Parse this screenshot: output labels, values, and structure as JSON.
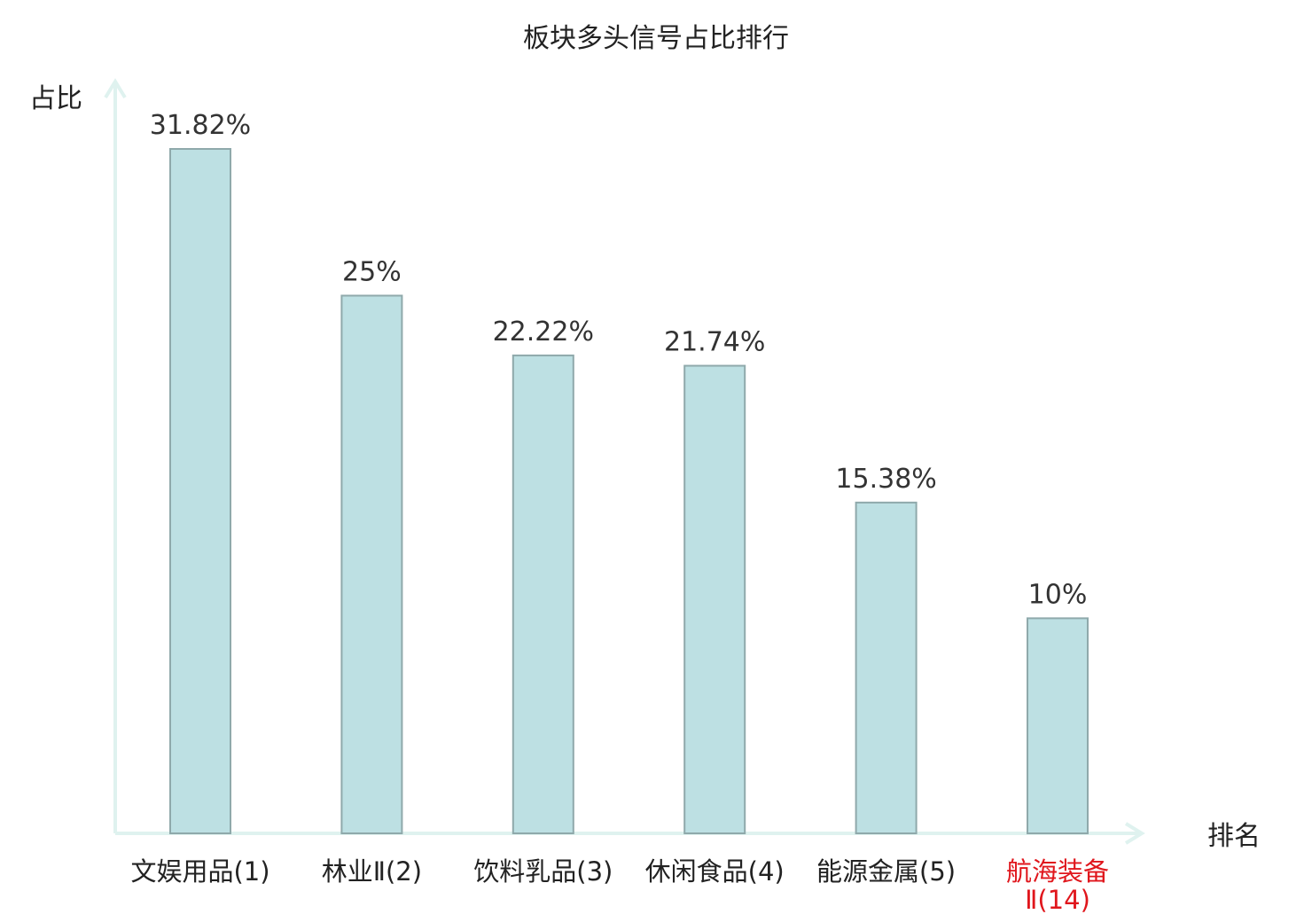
{
  "chart_data": {
    "type": "bar",
    "title": "板块多头信号占比排行",
    "ylabel": "占比",
    "xlabel": "排名",
    "ylim": [
      0,
      32
    ],
    "grid": false,
    "legend": "none",
    "categories": [
      {
        "lines": [
          "文娱用品(1)"
        ],
        "highlight": false
      },
      {
        "lines": [
          "林业Ⅱ(2)"
        ],
        "highlight": false
      },
      {
        "lines": [
          "饮料乳品(3)"
        ],
        "highlight": false
      },
      {
        "lines": [
          "休闲食品(4)"
        ],
        "highlight": false
      },
      {
        "lines": [
          "能源金属(5)"
        ],
        "highlight": false
      },
      {
        "lines": [
          "航海装备",
          "Ⅱ(14)"
        ],
        "highlight": true
      }
    ],
    "values": [
      31.82,
      25,
      22.22,
      21.74,
      15.38,
      10
    ],
    "value_labels": [
      "31.82%",
      "25%",
      "22.22%",
      "21.74%",
      "15.38%",
      "10%"
    ],
    "colors": {
      "bar_fill": "#bde0e3",
      "bar_stroke": "#8fa9ab",
      "axis": "#dff2ef",
      "highlight_label": "#e0161c"
    }
  }
}
